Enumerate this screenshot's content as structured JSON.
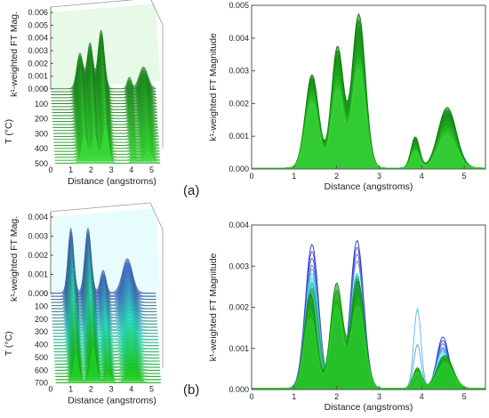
{
  "labels": {
    "a": "(a)",
    "b": "(b)"
  },
  "colors": {
    "dark_green": "#0c7a0c",
    "mid_green": "#1aa01a",
    "light_green": "#22e020",
    "blue": "#2233cc",
    "cyan": "#5fe8ee"
  },
  "chart_data": [
    {
      "id": "a-3d",
      "type": "area",
      "style": "3d-waterfall",
      "xlabel": "Distance (angstroms)",
      "ylabel": "k¹-weighted FT Mag.",
      "zlabel": "T (°C)",
      "x_ticks": [
        "0",
        "1",
        "2",
        "3",
        "4",
        "5"
      ],
      "y_ticks": [
        "0.000",
        "0.001",
        "0.002",
        "0.003",
        "0.004",
        "0.005",
        "0.006"
      ],
      "z_ticks": [
        "0",
        "100",
        "200",
        "300",
        "400",
        "500"
      ],
      "xlim": [
        0,
        5.2
      ],
      "ylim": [
        0,
        0.006
      ],
      "zlim": [
        0,
        500
      ],
      "series": [
        {
          "color": "#1f8a1f",
          "peaks": [
            [
              1.45,
              0.0028,
              0.22
            ],
            [
              1.95,
              0.0036,
              0.2
            ],
            [
              2.5,
              0.0046,
              0.22
            ],
            [
              3.9,
              0.0009,
              0.15
            ],
            [
              4.6,
              0.0017,
              0.3
            ]
          ]
        },
        {
          "color": "#36d836",
          "peaks": [
            [
              1.45,
              0.0022,
              0.22
            ],
            [
              1.95,
              0.0024,
              0.2
            ],
            [
              2.5,
              0.0031,
              0.22
            ],
            [
              3.9,
              0.0005,
              0.15
            ],
            [
              4.6,
              0.0011,
              0.3
            ]
          ]
        }
      ]
    },
    {
      "id": "a-2d",
      "type": "area",
      "xlabel": "Distance (angstroms)",
      "ylabel": "k¹-weighted FT Magnitude",
      "x_ticks": [
        "0",
        "1",
        "2",
        "3",
        "4",
        "5"
      ],
      "y_ticks": [
        "0.000",
        "0.001",
        "0.002",
        "0.003",
        "0.004",
        "0.005"
      ],
      "xlim": [
        0,
        5.5
      ],
      "ylim": [
        0,
        0.005
      ],
      "series": [
        {
          "color": "#0c7a0c",
          "peaks": [
            [
              1.42,
              0.00285,
              0.22
            ],
            [
              2.02,
              0.0037,
              0.2
            ],
            [
              2.52,
              0.0047,
              0.22
            ],
            [
              3.85,
              0.00095,
              0.14
            ],
            [
              4.6,
              0.00185,
              0.3
            ]
          ]
        },
        {
          "color": "#179617",
          "peaks": [
            [
              1.42,
              0.0026,
              0.22
            ],
            [
              2.02,
              0.0033,
              0.2
            ],
            [
              2.52,
              0.0041,
              0.22
            ],
            [
              3.85,
              0.0008,
              0.14
            ],
            [
              4.6,
              0.0016,
              0.3
            ]
          ]
        },
        {
          "color": "#22b322",
          "peaks": [
            [
              1.42,
              0.0023,
              0.22
            ],
            [
              2.02,
              0.0028,
              0.2
            ],
            [
              2.52,
              0.0035,
              0.22
            ],
            [
              3.85,
              0.0006,
              0.14
            ],
            [
              4.6,
              0.0013,
              0.3
            ]
          ]
        },
        {
          "color": "#3bd43b",
          "peaks": [
            [
              1.42,
              0.002,
              0.22
            ],
            [
              2.02,
              0.0024,
              0.2
            ],
            [
              2.52,
              0.003,
              0.22
            ],
            [
              3.85,
              0.0005,
              0.14
            ],
            [
              4.6,
              0.001,
              0.3
            ]
          ]
        }
      ]
    },
    {
      "id": "b-3d",
      "type": "area",
      "style": "3d-waterfall",
      "xlabel": "Distance (angstroms)",
      "ylabel": "k¹-weighted FT Mag.",
      "zlabel": "T (°C)",
      "x_ticks": [
        "0",
        "1",
        "2",
        "3",
        "4",
        "5"
      ],
      "y_ticks": [
        "0.000",
        "0.001",
        "0.002",
        "0.003",
        "0.004"
      ],
      "z_ticks": [
        "0",
        "100",
        "200",
        "300",
        "400",
        "500",
        "600",
        "700"
      ],
      "xlim": [
        0,
        5.2
      ],
      "ylim": [
        0,
        0.004
      ],
      "zlim": [
        0,
        700
      ],
      "series": [
        {
          "color": "#4a5fcf",
          "peaks": [
            [
              1.0,
              0.0034,
              0.2
            ],
            [
              1.85,
              0.0034,
              0.22
            ],
            [
              2.6,
              0.0012,
              0.2
            ],
            [
              3.8,
              0.0018,
              0.35
            ]
          ]
        },
        {
          "color": "#2fe0c8",
          "peaks": [
            [
              1.0,
              0.0025,
              0.2
            ],
            [
              1.85,
              0.0026,
              0.22
            ],
            [
              2.6,
              0.0009,
              0.2
            ],
            [
              3.8,
              0.0012,
              0.35
            ]
          ]
        },
        {
          "color": "#1ccc1c",
          "peaks": [
            [
              1.0,
              0.0017,
              0.2
            ],
            [
              1.85,
              0.002,
              0.22
            ],
            [
              2.6,
              0.0007,
              0.2
            ],
            [
              3.8,
              0.0008,
              0.35
            ]
          ]
        }
      ]
    },
    {
      "id": "b-2d",
      "type": "area",
      "xlabel": "Distance (angstroms)",
      "ylabel": "k¹-weighted FT Magnitude",
      "x_ticks": [
        "0",
        "1",
        "2",
        "3",
        "4",
        "5"
      ],
      "y_ticks": [
        "0.000",
        "0.001",
        "0.002",
        "0.003",
        "0.004"
      ],
      "xlim": [
        0,
        5.5
      ],
      "ylim": [
        0,
        0.004
      ],
      "series": [
        {
          "color": "#2233cc",
          "fill": false,
          "peaks": [
            [
              1.42,
              0.0035,
              0.22
            ],
            [
              2.48,
              0.0036,
              0.22
            ],
            [
              3.9,
              0.0003,
              0.12
            ],
            [
              4.5,
              0.00125,
              0.2
            ]
          ]
        },
        {
          "color": "#6a7ae0",
          "fill": false,
          "peaks": [
            [
              1.42,
              0.003,
              0.22
            ],
            [
              2.48,
              0.0031,
              0.22
            ],
            [
              3.9,
              0.0002,
              0.12
            ],
            [
              4.5,
              0.001,
              0.2
            ]
          ]
        },
        {
          "color": "#44dde8",
          "peaks": [
            [
              1.42,
              0.0027,
              0.22
            ],
            [
              2.0,
              0.0012,
              0.18
            ],
            [
              2.48,
              0.0028,
              0.22
            ],
            [
              4.5,
              0.0009,
              0.22
            ]
          ]
        },
        {
          "color": "#0e8a0e",
          "peaks": [
            [
              1.38,
              0.0023,
              0.2
            ],
            [
              2.0,
              0.00255,
              0.2
            ],
            [
              2.5,
              0.0026,
              0.22
            ],
            [
              3.9,
              0.0005,
              0.14
            ],
            [
              4.55,
              0.0008,
              0.26
            ]
          ]
        },
        {
          "color": "#2cd02c",
          "peaks": [
            [
              1.38,
              0.0017,
              0.2
            ],
            [
              2.0,
              0.002,
              0.2
            ],
            [
              2.5,
              0.002,
              0.22
            ],
            [
              3.9,
              0.0004,
              0.14
            ],
            [
              4.55,
              0.0006,
              0.26
            ]
          ]
        }
      ]
    }
  ]
}
